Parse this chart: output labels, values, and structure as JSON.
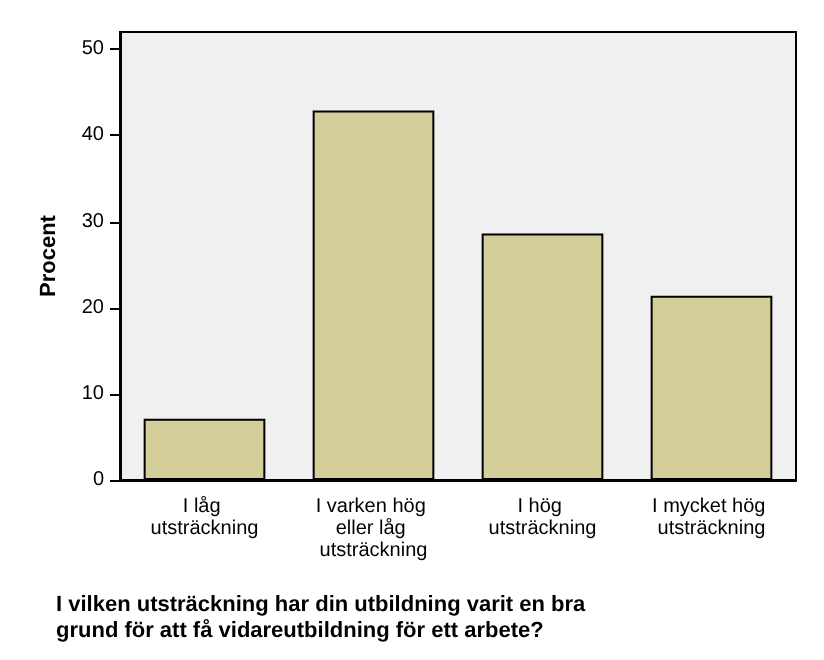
{
  "chart_data": {
    "type": "bar",
    "xlabel": "I vilken utsträckning har din utbildning varit en bra grund för att få vidareutbildning för ett arbete?",
    "ylabel": "Procent",
    "categories": [
      "I låg utsträckning",
      "I varken hög eller låg utsträckning",
      "I hög utsträckning",
      "I mycket hög utsträckning"
    ],
    "values": [
      7.1,
      42.9,
      28.6,
      21.4
    ],
    "color": "#d3ce9a",
    "ylim": [
      0,
      52
    ],
    "yticks": [
      0,
      10,
      20,
      30,
      40,
      50
    ],
    "grid": false
  }
}
